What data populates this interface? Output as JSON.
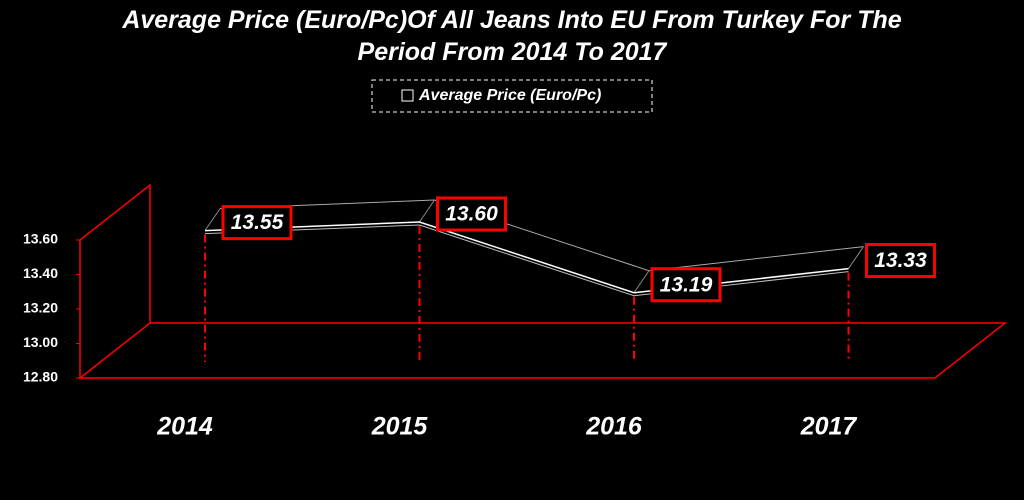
{
  "chart_data": {
    "type": "line",
    "title": "Average Price (Euro/Pc)Of All Jeans Into EU From Turkey For The Period From 2014 To 2017",
    "categories": [
      "2014",
      "2015",
      "2016",
      "2017"
    ],
    "series": [
      {
        "name": "Average Price (Euro/Pc)",
        "color": "#ffffff",
        "values": [
          13.55,
          13.6,
          13.19,
          13.33
        ],
        "value_labels": [
          "13.55",
          "13.60",
          "13.19",
          "13.33"
        ]
      }
    ],
    "ylim": [
      12.8,
      13.6
    ],
    "yticks": [
      {
        "value": 12.8,
        "label": "12.80"
      },
      {
        "value": 13,
        "label": "13.00"
      },
      {
        "value": 13.2,
        "label": "13.20"
      },
      {
        "value": 13.4,
        "label": "13.40"
      },
      {
        "value": 13.6,
        "label": "13.60"
      }
    ],
    "label_border_color": "#ff0000"
  }
}
